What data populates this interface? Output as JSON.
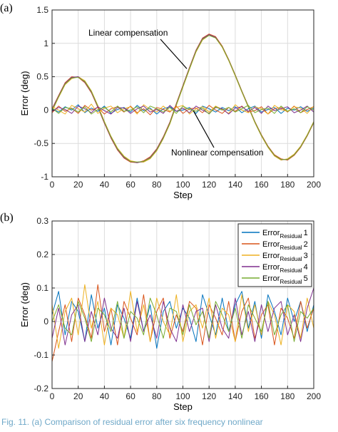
{
  "caption": "Fig. 11. (a) Comparison of residual error after six frequency nonlinear",
  "chart_data": [
    {
      "type": "line",
      "panel_label": "(a)",
      "xlabel": "Step",
      "ylabel": "Error (deg)",
      "xlim": [
        0,
        200
      ],
      "ylim": [
        -1,
        1.5
      ],
      "xticks": [
        0,
        20,
        40,
        60,
        80,
        100,
        120,
        140,
        160,
        180,
        200
      ],
      "yticks": [
        -1,
        -0.5,
        0,
        0.5,
        1,
        1.5
      ],
      "grid": true,
      "x": [
        0,
        5,
        10,
        15,
        20,
        25,
        30,
        35,
        40,
        45,
        50,
        55,
        60,
        65,
        70,
        75,
        80,
        85,
        90,
        95,
        100,
        105,
        110,
        115,
        120,
        125,
        130,
        135,
        140,
        145,
        150,
        155,
        160,
        165,
        170,
        175,
        180,
        185,
        190,
        195,
        200
      ],
      "series": [
        {
          "group": "Linear compensation",
          "color": "#0072bd",
          "values": [
            0.0,
            0.2,
            0.39,
            0.48,
            0.5,
            0.43,
            0.28,
            0.06,
            -0.18,
            -0.4,
            -0.58,
            -0.7,
            -0.77,
            -0.78,
            -0.77,
            -0.72,
            -0.6,
            -0.42,
            -0.2,
            0.08,
            0.35,
            0.62,
            0.88,
            1.06,
            1.13,
            1.09,
            0.95,
            0.75,
            0.52,
            0.28,
            0.05,
            -0.18,
            -0.38,
            -0.55,
            -0.68,
            -0.74,
            -0.74,
            -0.67,
            -0.55,
            -0.38,
            -0.18
          ]
        },
        {
          "group": "Linear compensation",
          "color": "#d95319",
          "values": [
            0.02,
            0.22,
            0.41,
            0.5,
            0.49,
            0.41,
            0.26,
            0.04,
            -0.2,
            -0.42,
            -0.6,
            -0.72,
            -0.78,
            -0.79,
            -0.76,
            -0.7,
            -0.58,
            -0.4,
            -0.18,
            0.1,
            0.37,
            0.64,
            0.9,
            1.08,
            1.14,
            1.1,
            0.96,
            0.76,
            0.53,
            0.29,
            0.06,
            -0.17,
            -0.37,
            -0.54,
            -0.67,
            -0.73,
            -0.75,
            -0.68,
            -0.56,
            -0.39,
            -0.19
          ]
        },
        {
          "group": "Linear compensation",
          "color": "#edb120",
          "values": [
            -0.02,
            0.19,
            0.38,
            0.47,
            0.5,
            0.44,
            0.29,
            0.07,
            -0.17,
            -0.39,
            -0.57,
            -0.69,
            -0.76,
            -0.78,
            -0.78,
            -0.73,
            -0.61,
            -0.43,
            -0.21,
            0.07,
            0.34,
            0.61,
            0.87,
            1.05,
            1.12,
            1.08,
            0.94,
            0.74,
            0.51,
            0.27,
            0.04,
            -0.19,
            -0.39,
            -0.56,
            -0.69,
            -0.75,
            -0.73,
            -0.66,
            -0.54,
            -0.37,
            -0.17
          ]
        },
        {
          "group": "Linear compensation",
          "color": "#7e2f8e",
          "values": [
            0.01,
            0.21,
            0.4,
            0.49,
            0.5,
            0.42,
            0.27,
            0.05,
            -0.19,
            -0.41,
            -0.59,
            -0.71,
            -0.77,
            -0.79,
            -0.77,
            -0.71,
            -0.59,
            -0.41,
            -0.19,
            0.09,
            0.36,
            0.63,
            0.89,
            1.07,
            1.13,
            1.09,
            0.95,
            0.75,
            0.52,
            0.28,
            0.05,
            -0.18,
            -0.38,
            -0.55,
            -0.68,
            -0.74,
            -0.74,
            -0.67,
            -0.55,
            -0.38,
            -0.18
          ]
        },
        {
          "group": "Linear compensation",
          "color": "#77ac30",
          "values": [
            -0.01,
            0.2,
            0.39,
            0.48,
            0.49,
            0.43,
            0.28,
            0.06,
            -0.18,
            -0.4,
            -0.58,
            -0.7,
            -0.77,
            -0.78,
            -0.77,
            -0.72,
            -0.6,
            -0.42,
            -0.2,
            0.08,
            0.35,
            0.62,
            0.88,
            1.06,
            1.12,
            1.08,
            0.95,
            0.75,
            0.52,
            0.28,
            0.05,
            -0.18,
            -0.38,
            -0.55,
            -0.68,
            -0.74,
            -0.74,
            -0.67,
            -0.55,
            -0.38,
            -0.18
          ]
        },
        {
          "group": "Nonlinear compensation",
          "color": "#0072bd",
          "values": [
            0.02,
            -0.03,
            0.05,
            0.0,
            0.08,
            -0.04,
            0.03,
            -0.02,
            0.06,
            -0.05,
            0.01,
            0.04,
            -0.03,
            0.07,
            -0.01,
            0.03,
            -0.06,
            0.02,
            0.05,
            -0.02,
            0.0,
            0.04,
            -0.05,
            0.06,
            0.02,
            -0.03,
            0.04,
            -0.01,
            0.05,
            -0.04,
            0.02,
            0.06,
            -0.03,
            0.01,
            0.04,
            -0.05,
            0.03,
            0.0,
            0.05,
            -0.02,
            0.03
          ]
        },
        {
          "group": "Nonlinear compensation",
          "color": "#d95319",
          "values": [
            -0.04,
            0.06,
            -0.02,
            0.03,
            -0.05,
            0.07,
            0.0,
            0.04,
            -0.06,
            0.02,
            0.05,
            -0.03,
            0.06,
            -0.04,
            0.02,
            -0.07,
            0.04,
            0.01,
            -0.03,
            0.06,
            -0.05,
            0.02,
            0.03,
            -0.04,
            0.07,
            0.0,
            -0.05,
            0.04,
            -0.02,
            0.06,
            -0.03,
            -0.01,
            0.05,
            -0.06,
            0.02,
            0.04,
            -0.03,
            0.06,
            -0.04,
            0.01,
            0.05
          ]
        },
        {
          "group": "Nonlinear compensation",
          "color": "#edb120",
          "values": [
            0.05,
            0.0,
            -0.06,
            0.07,
            0.02,
            -0.03,
            0.09,
            -0.05,
            0.03,
            0.06,
            -0.04,
            0.02,
            0.05,
            -0.06,
            0.08,
            0.01,
            -0.03,
            0.06,
            -0.02,
            0.04,
            0.07,
            -0.06,
            0.02,
            0.05,
            -0.03,
            0.06,
            0.01,
            -0.05,
            0.08,
            0.0,
            -0.04,
            0.05,
            0.02,
            -0.06,
            0.07,
            0.01,
            -0.02,
            0.05,
            0.03,
            -0.05,
            0.06
          ]
        },
        {
          "group": "Nonlinear compensation",
          "color": "#7e2f8e",
          "values": [
            -0.02,
            0.04,
            0.01,
            -0.05,
            0.06,
            0.02,
            -0.04,
            0.05,
            -0.01,
            -0.06,
            0.04,
            0.03,
            -0.05,
            0.02,
            0.06,
            -0.03,
            0.01,
            -0.05,
            0.07,
            -0.02,
            0.03,
            -0.04,
            0.06,
            0.0,
            -0.05,
            0.04,
            0.02,
            -0.06,
            0.03,
            0.05,
            -0.02,
            0.04,
            -0.05,
            0.06,
            -0.01,
            0.02,
            0.05,
            -0.04,
            0.0,
            0.06,
            -0.03
          ]
        },
        {
          "group": "Nonlinear compensation",
          "color": "#77ac30",
          "values": [
            0.03,
            -0.05,
            0.04,
            0.02,
            -0.03,
            0.05,
            -0.06,
            0.01,
            0.04,
            -0.03,
            0.06,
            -0.02,
            0.0,
            0.05,
            -0.04,
            0.06,
            0.02,
            -0.03,
            0.04,
            -0.05,
            0.06,
            0.01,
            -0.02,
            0.03,
            -0.06,
            0.05,
            0.0,
            0.04,
            -0.03,
            0.02,
            0.07,
            -0.04,
            0.01,
            0.03,
            -0.05,
            0.06,
            -0.02,
            0.02,
            -0.04,
            0.05,
            0.0
          ]
        }
      ],
      "annotations": [
        {
          "text": "Linear compensation",
          "x": 103,
          "y": 0.62
        },
        {
          "text": "Nonlinear compensation",
          "x": 108,
          "y": -0.01
        }
      ]
    },
    {
      "type": "line",
      "panel_label": "(b)",
      "xlabel": "Step",
      "ylabel": "Error (deg)",
      "xlim": [
        0,
        200
      ],
      "ylim": [
        -0.2,
        0.3
      ],
      "xticks": [
        0,
        20,
        40,
        60,
        80,
        100,
        120,
        140,
        160,
        180,
        200
      ],
      "yticks": [
        -0.2,
        -0.1,
        0,
        0.1,
        0.2,
        0.3
      ],
      "grid": true,
      "legend_position": "top-right",
      "x": [
        0,
        5,
        10,
        15,
        20,
        25,
        30,
        35,
        40,
        45,
        50,
        55,
        60,
        65,
        70,
        75,
        80,
        85,
        90,
        95,
        100,
        105,
        110,
        115,
        120,
        125,
        130,
        135,
        140,
        145,
        150,
        155,
        160,
        165,
        170,
        175,
        180,
        185,
        190,
        195,
        200
      ],
      "series": [
        {
          "name": "Error",
          "sub": "Residual",
          "suffix": "1",
          "color": "#0072bd",
          "values": [
            0.02,
            0.09,
            -0.04,
            0.06,
            0.03,
            -0.06,
            0.08,
            -0.02,
            0.04,
            -0.07,
            0.05,
            0.01,
            -0.05,
            0.07,
            -0.03,
            0.05,
            -0.08,
            0.03,
            0.06,
            -0.02,
            0.04,
            0.01,
            -0.06,
            0.08,
            0.02,
            -0.04,
            0.07,
            -0.03,
            0.05,
            0.09,
            -0.02,
            0.06,
            -0.05,
            0.08,
            0.03,
            -0.04,
            0.07,
            0.0,
            0.06,
            -0.03,
            0.05
          ]
        },
        {
          "name": "Error",
          "sub": "Residual",
          "suffix": "2",
          "color": "#d95319",
          "values": [
            -0.12,
            -0.03,
            0.05,
            -0.06,
            0.07,
            0.02,
            -0.05,
            0.11,
            -0.03,
            0.04,
            -0.07,
            0.06,
            0.01,
            -0.04,
            0.08,
            -0.06,
            0.03,
            0.07,
            -0.05,
            0.02,
            -0.03,
            0.06,
            0.04,
            -0.07,
            0.05,
            0.01,
            -0.04,
            0.06,
            -0.06,
            0.03,
            0.07,
            -0.05,
            0.02,
            0.05,
            -0.07,
            0.04,
            0.01,
            -0.05,
            0.06,
            -0.02,
            0.04
          ]
        },
        {
          "name": "Error",
          "sub": "Residual",
          "suffix": "3",
          "color": "#edb120",
          "values": [
            0.05,
            -0.08,
            0.03,
            0.07,
            -0.04,
            0.11,
            -0.02,
            0.06,
            -0.07,
            0.04,
            0.02,
            -0.05,
            0.09,
            -0.03,
            0.05,
            -0.06,
            0.07,
            0.0,
            -0.04,
            0.08,
            -0.06,
            0.03,
            0.05,
            -0.02,
            0.07,
            -0.05,
            0.04,
            0.02,
            -0.06,
            0.08,
            -0.03,
            0.05,
            -0.04,
            0.06,
            0.02,
            -0.07,
            0.05,
            0.03,
            -0.05,
            0.07,
            -0.02
          ]
        },
        {
          "name": "Error",
          "sub": "Residual",
          "suffix": "4",
          "color": "#7e2f8e",
          "values": [
            -0.05,
            0.04,
            -0.07,
            0.02,
            0.05,
            -0.06,
            0.03,
            -0.04,
            0.07,
            -0.02,
            -0.05,
            0.04,
            -0.06,
            0.06,
            -0.03,
            0.02,
            -0.05,
            0.06,
            -0.02,
            -0.06,
            0.05,
            -0.03,
            0.03,
            0.04,
            -0.06,
            0.05,
            -0.02,
            -0.05,
            0.07,
            -0.04,
            0.03,
            -0.06,
            0.05,
            -0.03,
            0.04,
            0.06,
            -0.04,
            0.02,
            -0.06,
            0.04,
            0.1
          ]
        },
        {
          "name": "Error",
          "sub": "Residual",
          "suffix": "5",
          "color": "#77ac30",
          "values": [
            0.0,
            0.05,
            -0.02,
            -0.04,
            0.06,
            0.01,
            -0.06,
            0.04,
            0.02,
            -0.03,
            0.06,
            -0.05,
            0.03,
            0.01,
            -0.04,
            0.07,
            0.02,
            -0.05,
            0.04,
            0.03,
            -0.04,
            0.05,
            -0.01,
            0.03,
            -0.05,
            0.06,
            0.02,
            -0.03,
            0.04,
            -0.05,
            0.05,
            0.01,
            -0.03,
            0.06,
            -0.04,
            0.02,
            0.05,
            -0.06,
            0.03,
            0.01,
            0.04
          ]
        }
      ]
    }
  ]
}
